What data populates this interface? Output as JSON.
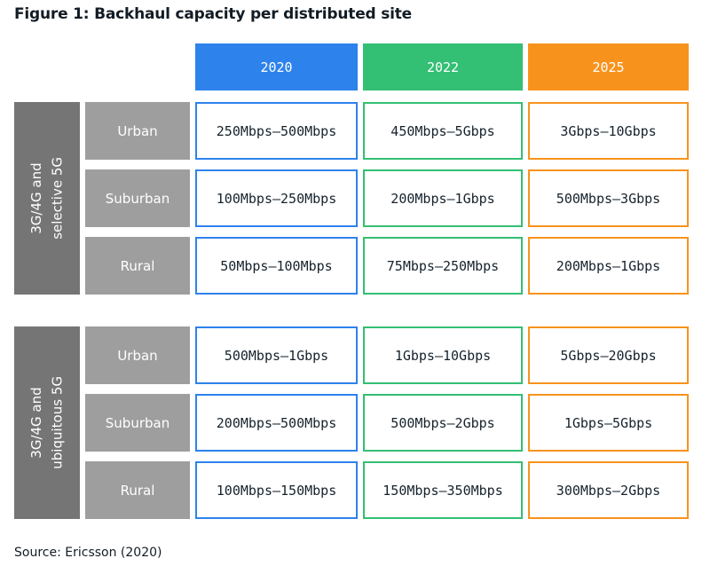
{
  "title": "Figure 1: Backhaul capacity per distributed site",
  "source": "Source: Ericsson (2020)",
  "colors": {
    "c2020": "#2e82ec",
    "c2022": "#33bf74",
    "c2025": "#f7931d",
    "band": "#757575",
    "rowlabel": "#9e9e9e",
    "ink": "#16222c",
    "title": "#131c24"
  },
  "chart_data": {
    "type": "table",
    "title": "Figure 1: Backhaul capacity per distributed site",
    "columns": [
      "2020",
      "2022",
      "2025"
    ],
    "row_groups": [
      {
        "group": "3G/4G and selective 5G",
        "label_lines": [
          "3G/4G and",
          "selective 5G"
        ],
        "rows": [
          {
            "label": "Urban",
            "values": [
              "250Mbps–500Mbps",
              "450Mbps–5Gbps",
              "3Gbps–10Gbps"
            ]
          },
          {
            "label": "Suburban",
            "values": [
              "100Mbps–250Mbps",
              "200Mbps–1Gbps",
              "500Mbps–3Gbps"
            ]
          },
          {
            "label": "Rural",
            "values": [
              "50Mbps–100Mbps",
              "75Mbps–250Mbps",
              "200Mbps–1Gbps"
            ]
          }
        ]
      },
      {
        "group": "3G/4G and ubiquitous 5G",
        "label_lines": [
          "3G/4G and",
          "ubiquitous 5G"
        ],
        "rows": [
          {
            "label": "Urban",
            "values": [
              "500Mbps–1Gbps",
              "1Gbps–10Gbps",
              "5Gbps–20Gbps"
            ]
          },
          {
            "label": "Suburban",
            "values": [
              "200Mbps–500Mbps",
              "500Mbps–2Gbps",
              "1Gbps–5Gbps"
            ]
          },
          {
            "label": "Rural",
            "values": [
              "100Mbps–150Mbps",
              "150Mbps–350Mbps",
              "300Mbps–2Gbps"
            ]
          }
        ]
      }
    ],
    "source": "Source: Ericsson (2020)",
    "layout": {
      "legend": "none",
      "grid": "off",
      "header_position": "top"
    }
  }
}
